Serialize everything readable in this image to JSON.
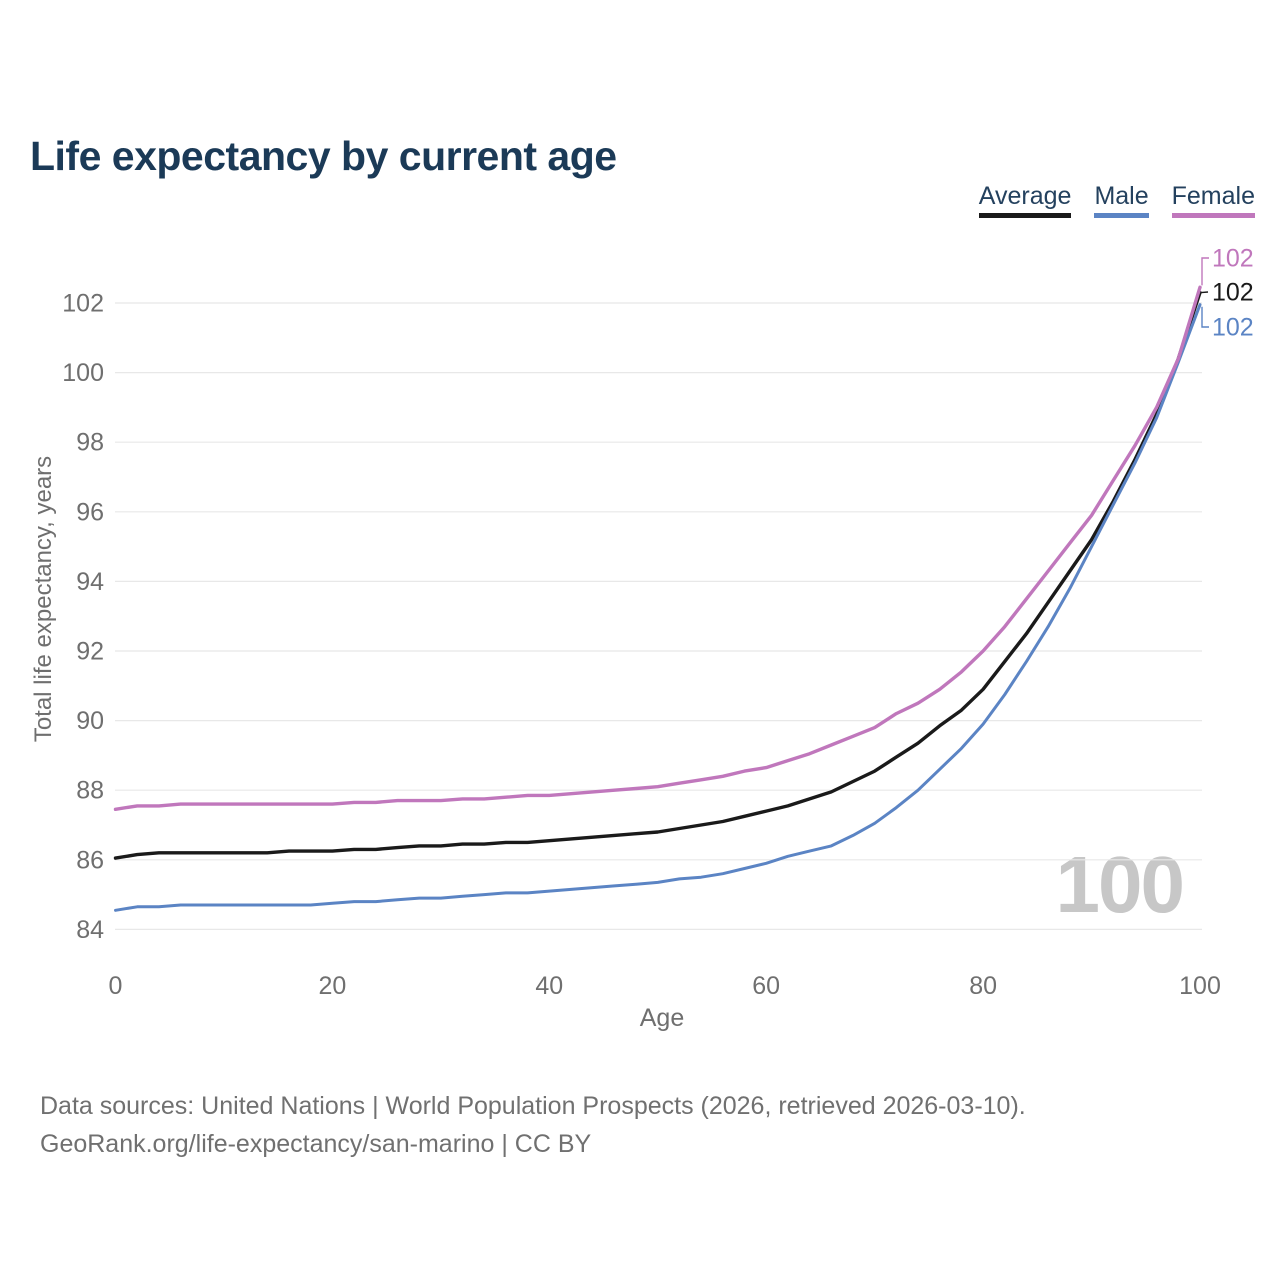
{
  "chart_data": {
    "type": "line",
    "title": "Life expectancy by current age",
    "xlabel": "Age",
    "ylabel": "Total life expectancy, years",
    "watermark": "100",
    "grid": "horizontal",
    "legend_position": "top-right",
    "xlim": [
      0,
      100
    ],
    "ylim": [
      83.5,
      103.4
    ],
    "xticks": [
      0,
      20,
      40,
      60,
      80,
      100
    ],
    "yticks": [
      84,
      86,
      88,
      90,
      92,
      94,
      96,
      98,
      100,
      102
    ],
    "x": [
      0,
      2,
      4,
      6,
      8,
      10,
      12,
      14,
      16,
      18,
      20,
      22,
      24,
      26,
      28,
      30,
      32,
      34,
      36,
      38,
      40,
      42,
      44,
      46,
      48,
      50,
      52,
      54,
      56,
      58,
      60,
      62,
      64,
      66,
      68,
      70,
      72,
      74,
      76,
      78,
      80,
      82,
      84,
      86,
      88,
      90,
      92,
      94,
      96,
      98,
      100
    ],
    "series": [
      {
        "name": "Average",
        "color": "#1a1a1a",
        "end_label": "102",
        "values": [
          86.05,
          86.15,
          86.2,
          86.2,
          86.2,
          86.2,
          86.2,
          86.2,
          86.25,
          86.25,
          86.25,
          86.3,
          86.3,
          86.35,
          86.4,
          86.4,
          86.45,
          86.45,
          86.5,
          86.5,
          86.55,
          86.6,
          86.65,
          86.7,
          86.75,
          86.8,
          86.9,
          87.0,
          87.1,
          87.25,
          87.4,
          87.55,
          87.75,
          87.95,
          88.25,
          88.55,
          88.95,
          89.35,
          89.85,
          90.3,
          90.9,
          91.7,
          92.5,
          93.4,
          94.3,
          95.2,
          96.3,
          97.5,
          98.8,
          100.4,
          102.3
        ]
      },
      {
        "name": "Male",
        "color": "#5b84c4",
        "end_label": "102",
        "values": [
          84.55,
          84.65,
          84.65,
          84.7,
          84.7,
          84.7,
          84.7,
          84.7,
          84.7,
          84.7,
          84.75,
          84.8,
          84.8,
          84.85,
          84.9,
          84.9,
          84.95,
          85.0,
          85.05,
          85.05,
          85.1,
          85.15,
          85.2,
          85.25,
          85.3,
          85.35,
          85.45,
          85.5,
          85.6,
          85.75,
          85.9,
          86.1,
          86.25,
          86.4,
          86.7,
          87.05,
          87.5,
          88.0,
          88.6,
          89.2,
          89.9,
          90.75,
          91.7,
          92.7,
          93.8,
          95.0,
          96.2,
          97.4,
          98.7,
          100.3,
          101.95
        ]
      },
      {
        "name": "Female",
        "color": "#c077bc",
        "end_label": "102",
        "values": [
          87.45,
          87.55,
          87.55,
          87.6,
          87.6,
          87.6,
          87.6,
          87.6,
          87.6,
          87.6,
          87.6,
          87.65,
          87.65,
          87.7,
          87.7,
          87.7,
          87.75,
          87.75,
          87.8,
          87.85,
          87.85,
          87.9,
          87.95,
          88.0,
          88.05,
          88.1,
          88.2,
          88.3,
          88.4,
          88.55,
          88.65,
          88.85,
          89.05,
          89.3,
          89.55,
          89.8,
          90.2,
          90.5,
          90.9,
          91.4,
          92.0,
          92.7,
          93.5,
          94.3,
          95.1,
          95.9,
          96.9,
          97.9,
          99.0,
          100.4,
          102.45
        ]
      }
    ]
  },
  "footer": {
    "line1": "Data sources: United Nations | World Population Prospects (2026, retrieved 2026-03-10).",
    "line2": "GeoRank.org/life-expectancy/san-marino | CC BY"
  }
}
